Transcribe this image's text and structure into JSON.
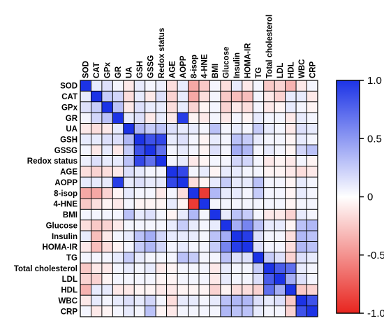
{
  "chart_data": {
    "type": "heatmap",
    "title": "",
    "variables": [
      "SOD",
      "CAT",
      "GPx",
      "GR",
      "UA",
      "GSH",
      "GSSG",
      "Redox status",
      "AGE",
      "AOPP",
      "8-isop",
      "4-HNE",
      "BMI",
      "Glucose",
      "Insulin",
      "HOMA-IR",
      "TG",
      "Total cholesterol",
      "LDL",
      "HDL",
      "WBC",
      "CRP"
    ],
    "matrix": [
      [
        1.0,
        0.1,
        0.15,
        0.05,
        -0.1,
        0.1,
        0.05,
        0.08,
        -0.15,
        0.1,
        -0.4,
        -0.25,
        0.05,
        -0.15,
        0.1,
        -0.1,
        0.05,
        -0.25,
        -0.2,
        -0.35,
        -0.1,
        0.05
      ],
      [
        0.1,
        1.0,
        0.25,
        0.2,
        -0.15,
        0.1,
        -0.1,
        0.15,
        -0.2,
        0.1,
        -0.4,
        -0.15,
        0.05,
        -0.25,
        -0.3,
        -0.3,
        0.05,
        -0.1,
        -0.2,
        0.1,
        0.1,
        -0.1
      ],
      [
        0.15,
        0.25,
        1.0,
        0.3,
        -0.1,
        0.15,
        0.1,
        0.1,
        -0.15,
        0.1,
        -0.2,
        -0.05,
        0.05,
        -0.2,
        -0.1,
        -0.15,
        0.05,
        -0.1,
        -0.05,
        0.1,
        0.05,
        -0.05
      ],
      [
        0.05,
        0.2,
        0.3,
        1.0,
        0.1,
        0.15,
        -0.1,
        0.1,
        -0.1,
        0.95,
        -0.05,
        -0.1,
        0.05,
        -0.1,
        0.05,
        -0.05,
        0.1,
        0.05,
        0.05,
        -0.1,
        0.1,
        0.05
      ],
      [
        -0.1,
        -0.15,
        -0.1,
        0.1,
        1.0,
        0.35,
        0.25,
        0.3,
        0.15,
        0.1,
        0.1,
        0.05,
        0.3,
        0.05,
        0.1,
        0.05,
        0.25,
        0.1,
        0.05,
        -0.1,
        0.15,
        0.1
      ],
      [
        0.1,
        0.1,
        0.15,
        0.15,
        0.35,
        1.0,
        0.85,
        0.9,
        0.1,
        0.15,
        0.05,
        -0.05,
        0.1,
        0.05,
        0.3,
        0.25,
        0.1,
        0.05,
        0.05,
        -0.05,
        0.1,
        0.05
      ],
      [
        0.05,
        -0.1,
        0.1,
        -0.1,
        0.25,
        0.85,
        1.0,
        0.7,
        0.05,
        0.1,
        0.05,
        -0.05,
        0.15,
        0.05,
        0.4,
        0.35,
        0.05,
        0.1,
        0.05,
        -0.05,
        0.2,
        0.3
      ],
      [
        0.08,
        0.15,
        0.1,
        0.1,
        0.3,
        0.9,
        0.7,
        1.0,
        0.05,
        0.1,
        -0.1,
        -0.05,
        0.05,
        0.05,
        0.2,
        0.2,
        0.05,
        -0.1,
        -0.05,
        -0.1,
        0.05,
        -0.05
      ],
      [
        -0.15,
        -0.2,
        -0.15,
        -0.1,
        0.15,
        0.1,
        0.05,
        0.05,
        1.0,
        0.9,
        0.05,
        0.1,
        -0.05,
        0.1,
        0.1,
        0.05,
        0.05,
        -0.05,
        -0.05,
        -0.1,
        -0.15,
        -0.1
      ],
      [
        0.1,
        0.1,
        0.1,
        0.95,
        0.1,
        0.15,
        0.1,
        0.1,
        0.9,
        1.0,
        -0.15,
        -0.05,
        0.1,
        0.25,
        0.1,
        0.1,
        0.3,
        0.05,
        0.05,
        -0.05,
        0.1,
        0.05
      ],
      [
        -0.4,
        -0.4,
        -0.2,
        -0.05,
        0.1,
        0.05,
        0.05,
        -0.1,
        0.05,
        -0.15,
        1.0,
        -0.9,
        0.35,
        0.1,
        0.1,
        0.05,
        0.25,
        0.05,
        0.05,
        -0.05,
        0.1,
        0.05
      ],
      [
        -0.25,
        -0.15,
        -0.05,
        -0.1,
        0.05,
        -0.05,
        -0.05,
        -0.05,
        0.1,
        -0.05,
        -0.9,
        1.0,
        0.05,
        0.05,
        0.05,
        0.05,
        0.05,
        0.05,
        0.05,
        -0.05,
        0.05,
        0.05
      ],
      [
        0.05,
        0.05,
        0.05,
        0.05,
        0.3,
        0.1,
        0.15,
        0.05,
        -0.05,
        0.1,
        0.35,
        0.05,
        1.0,
        0.1,
        0.3,
        0.25,
        0.05,
        -0.1,
        -0.1,
        -0.2,
        0.1,
        0.05
      ],
      [
        -0.15,
        -0.25,
        -0.2,
        -0.1,
        0.05,
        0.05,
        0.05,
        0.05,
        0.1,
        0.25,
        0.1,
        0.05,
        0.1,
        1.0,
        0.4,
        0.6,
        0.3,
        0.1,
        0.1,
        -0.05,
        0.3,
        0.35
      ],
      [
        0.1,
        -0.3,
        -0.1,
        0.05,
        0.1,
        0.3,
        0.4,
        0.2,
        0.1,
        0.1,
        0.1,
        0.05,
        0.3,
        0.4,
        1.0,
        0.95,
        0.15,
        0.05,
        0.05,
        -0.15,
        0.35,
        0.3
      ],
      [
        -0.1,
        -0.3,
        -0.15,
        -0.05,
        0.05,
        0.25,
        0.35,
        0.2,
        0.05,
        0.1,
        0.05,
        0.05,
        0.25,
        0.6,
        0.95,
        1.0,
        0.15,
        0.05,
        0.05,
        -0.15,
        0.35,
        0.3
      ],
      [
        0.05,
        0.05,
        0.05,
        0.1,
        0.25,
        0.1,
        0.05,
        0.05,
        0.05,
        0.3,
        0.25,
        0.05,
        0.05,
        0.3,
        0.15,
        0.15,
        1.0,
        0.25,
        0.15,
        -0.2,
        0.15,
        0.1
      ],
      [
        -0.25,
        -0.1,
        -0.1,
        0.05,
        0.1,
        0.05,
        0.1,
        -0.1,
        -0.05,
        0.05,
        0.05,
        0.05,
        -0.1,
        0.1,
        0.05,
        0.05,
        0.25,
        1.0,
        0.8,
        0.7,
        0.1,
        0.05
      ],
      [
        -0.2,
        -0.2,
        -0.05,
        0.05,
        0.05,
        0.05,
        0.05,
        -0.05,
        -0.05,
        0.05,
        0.05,
        0.05,
        -0.1,
        0.1,
        0.05,
        0.05,
        0.15,
        0.8,
        1.0,
        0.4,
        0.15,
        0.05
      ],
      [
        -0.35,
        0.1,
        0.1,
        -0.1,
        -0.1,
        -0.05,
        -0.05,
        -0.1,
        -0.1,
        -0.05,
        -0.05,
        -0.05,
        -0.2,
        -0.05,
        -0.15,
        -0.15,
        -0.2,
        0.7,
        0.4,
        1.0,
        -0.25,
        -0.2
      ],
      [
        -0.1,
        0.1,
        0.05,
        0.1,
        0.15,
        0.1,
        0.2,
        0.05,
        -0.15,
        0.1,
        0.1,
        0.05,
        0.1,
        0.3,
        0.35,
        0.35,
        0.15,
        0.1,
        0.15,
        -0.25,
        1.0,
        0.85
      ],
      [
        0.05,
        -0.1,
        -0.05,
        0.05,
        0.1,
        0.05,
        0.3,
        -0.05,
        -0.1,
        0.05,
        0.05,
        0.05,
        0.05,
        0.35,
        0.3,
        0.3,
        0.1,
        0.05,
        0.05,
        -0.2,
        0.85,
        1.0
      ]
    ],
    "colorbar": {
      "range": [
        -1.0,
        1.0
      ],
      "ticks": [
        1.0,
        0.5,
        0,
        -0.5,
        -1.0
      ],
      "tick_labels": [
        "1.0",
        "0.5",
        "0",
        "-0.5",
        "-1.0"
      ],
      "colors": {
        "negative": "#e8251f",
        "zero": "#ffffff",
        "positive": "#1c33e6"
      }
    }
  }
}
